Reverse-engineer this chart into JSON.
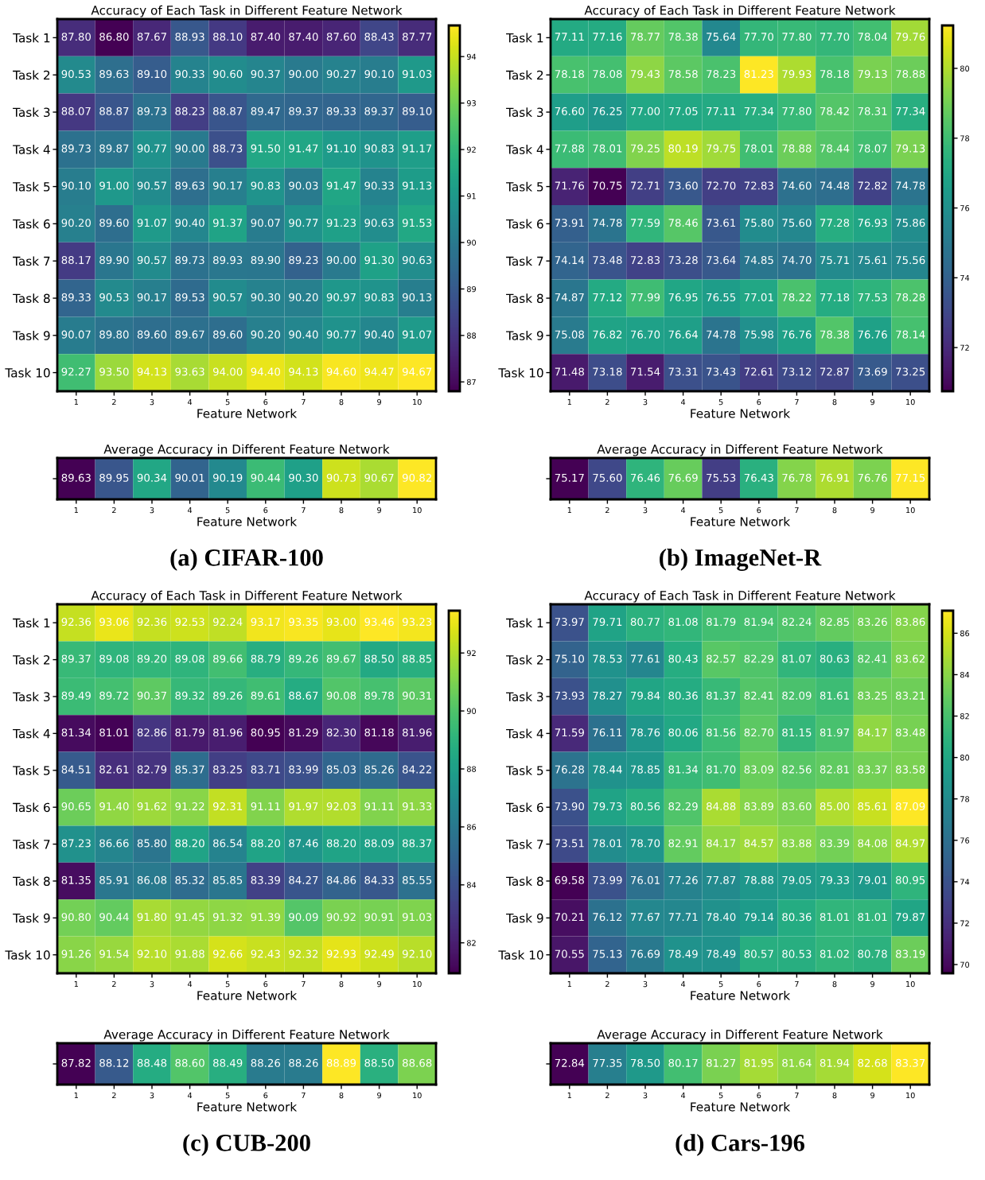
{
  "chart_data": [
    {
      "type": "heatmap",
      "title": "Accuracy of Each Task in Different Feature Network",
      "xlabel": "Feature Network",
      "categories": [
        "1",
        "2",
        "3",
        "4",
        "5",
        "6",
        "7",
        "8",
        "9",
        "10"
      ],
      "y_categories": [
        "Task 1",
        "Task 2",
        "Task 3",
        "Task 4",
        "Task 5",
        "Task 6",
        "Task 7",
        "Task 8",
        "Task 9",
        "Task 10"
      ],
      "data_labels": true,
      "clim": [
        86.8,
        94.67
      ],
      "cticks": [
        87,
        88,
        89,
        90,
        91,
        92,
        93,
        94
      ],
      "cells": [
        [
          87.8,
          86.8,
          87.67,
          88.93,
          88.1,
          87.4,
          87.4,
          87.6,
          88.43,
          87.77
        ],
        [
          90.53,
          89.63,
          89.1,
          90.33,
          90.6,
          90.37,
          90.0,
          90.27,
          90.1,
          91.03
        ],
        [
          88.07,
          88.87,
          89.73,
          88.23,
          88.87,
          89.47,
          89.37,
          89.33,
          89.37,
          89.1
        ],
        [
          89.73,
          89.87,
          90.77,
          90.0,
          88.73,
          91.5,
          91.47,
          91.1,
          90.83,
          91.17
        ],
        [
          90.1,
          91.0,
          90.57,
          89.63,
          90.17,
          90.83,
          90.03,
          91.47,
          90.33,
          91.13
        ],
        [
          90.2,
          89.6,
          91.07,
          90.4,
          91.37,
          90.07,
          90.77,
          91.23,
          90.63,
          91.53
        ],
        [
          88.17,
          89.9,
          90.57,
          89.73,
          89.93,
          89.9,
          89.23,
          90.0,
          91.3,
          90.63
        ],
        [
          89.33,
          90.53,
          90.17,
          89.53,
          90.57,
          90.3,
          90.2,
          90.97,
          90.83,
          90.13
        ],
        [
          90.07,
          89.8,
          89.6,
          89.67,
          89.6,
          90.2,
          90.4,
          90.77,
          90.4,
          91.07
        ],
        [
          92.27,
          93.5,
          94.13,
          93.63,
          94.0,
          94.4,
          94.13,
          94.6,
          94.47,
          94.67
        ]
      ],
      "cell_labels": [
        [
          "87.80",
          "86.80",
          "87.67",
          "88.93",
          "88.10",
          "87.40",
          "87.40",
          "87.60",
          "88.43",
          "87.77"
        ],
        [
          "90.53",
          "89.63",
          "89.10",
          "90.33",
          "90.60",
          "90.37",
          "90.00",
          "90.27",
          "90.10",
          "91.03"
        ],
        [
          "88.07",
          "88.87",
          "89.73",
          "88.23",
          "88.87",
          "89.47",
          "89.37",
          "89.33",
          "89.37",
          "89.10"
        ],
        [
          "89.73",
          "89.87",
          "90.77",
          "90.00",
          "88.73",
          "91.50",
          "91.47",
          "91.10",
          "90.83",
          "91.17"
        ],
        [
          "90.10",
          "91.00",
          "90.57",
          "89.63",
          "90.17",
          "90.83",
          "90.03",
          "91.47",
          "90.33",
          "91.13"
        ],
        [
          "90.20",
          "89.60",
          "91.07",
          "90.40",
          "91.37",
          "90.07",
          "90.77",
          "91.23",
          "90.63",
          "91.53"
        ],
        [
          "88.17",
          "89.90",
          "90.57",
          "89.73",
          "89.93",
          "89.90",
          "89.23",
          "90.00",
          "91.30",
          "90.63"
        ],
        [
          "89.33",
          "90.53",
          "90.17",
          "89.53",
          "90.57",
          "90.30",
          "90.20",
          "90.97",
          "90.83",
          "90.13"
        ],
        [
          "90.07",
          "89.80",
          "89.60",
          "89.67",
          "89.60",
          "90.20",
          "90.40",
          "90.77",
          "90.40",
          "91.07"
        ],
        [
          "92.27",
          "93.50",
          "94.13",
          "93.63",
          "94.00",
          "94.40",
          "94.13",
          "94.60",
          "94.47",
          "94.67"
        ]
      ]
    },
    {
      "type": "heatmap",
      "title": "Average Accuracy in Different Feature Network",
      "xlabel": "Feature Network",
      "categories": [
        "1",
        "2",
        "3",
        "4",
        "5",
        "6",
        "7",
        "8",
        "9",
        "10"
      ],
      "y_categories": [
        null
      ],
      "data_labels": true,
      "annotations": [
        "(a) CIFAR-100"
      ],
      "cells": [
        [
          89.63,
          89.95,
          90.34,
          90.01,
          90.19,
          90.44,
          90.3,
          90.73,
          90.67,
          90.82
        ]
      ],
      "cell_labels": [
        [
          "89.63",
          "89.95",
          "90.34",
          "90.01",
          "90.19",
          "90.44",
          "90.30",
          "90.73",
          "90.67",
          "90.82"
        ]
      ]
    },
    {
      "type": "heatmap",
      "title": "Accuracy of Each Task in Different Feature Network",
      "xlabel": "Feature Network",
      "categories": [
        "1",
        "2",
        "3",
        "4",
        "5",
        "6",
        "7",
        "8",
        "9",
        "10"
      ],
      "y_categories": [
        "Task 1",
        "Task 2",
        "Task 3",
        "Task 4",
        "Task 5",
        "Task 6",
        "Task 7",
        "Task 8",
        "Task 9",
        "Task 10"
      ],
      "data_labels": true,
      "clim": [
        70.75,
        81.23
      ],
      "cticks": [
        72,
        74,
        76,
        78,
        80
      ],
      "cells": [
        [
          77.11,
          77.16,
          78.77,
          78.38,
          75.64,
          77.7,
          77.8,
          77.7,
          78.04,
          79.76
        ],
        [
          78.18,
          78.08,
          79.43,
          78.58,
          78.23,
          81.23,
          79.93,
          78.18,
          79.13,
          78.88
        ],
        [
          76.6,
          76.25,
          77.0,
          77.05,
          77.11,
          77.34,
          77.8,
          78.42,
          78.31,
          77.34
        ],
        [
          77.88,
          78.01,
          79.25,
          80.19,
          79.75,
          78.01,
          78.88,
          78.44,
          78.07,
          79.13
        ],
        [
          71.76,
          70.75,
          72.71,
          73.6,
          72.7,
          72.83,
          74.6,
          74.48,
          72.82,
          74.78
        ],
        [
          73.91,
          74.78,
          77.59,
          78.46,
          73.61,
          75.8,
          75.6,
          77.28,
          76.93,
          75.86
        ],
        [
          74.14,
          73.48,
          72.83,
          73.28,
          73.64,
          74.85,
          74.7,
          75.71,
          75.61,
          75.56
        ],
        [
          74.87,
          77.12,
          77.99,
          76.95,
          76.55,
          77.01,
          78.22,
          77.18,
          77.53,
          78.28
        ],
        [
          75.08,
          76.82,
          76.7,
          76.64,
          74.78,
          75.98,
          76.76,
          78.38,
          76.76,
          78.14
        ],
        [
          71.48,
          73.18,
          71.54,
          73.31,
          73.43,
          72.61,
          73.12,
          72.87,
          73.69,
          73.25
        ]
      ],
      "cell_labels": [
        [
          "77.11",
          "77.16",
          "78.77",
          "78.38",
          "75.64",
          "77.70",
          "77.80",
          "77.70",
          "78.04",
          "79.76"
        ],
        [
          "78.18",
          "78.08",
          "79.43",
          "78.58",
          "78.23",
          "81.23",
          "79.93",
          "78.18",
          "79.13",
          "78.88"
        ],
        [
          "76.60",
          "76.25",
          "77.00",
          "77.05",
          "77.11",
          "77.34",
          "77.80",
          "78.42",
          "78.31",
          "77.34"
        ],
        [
          "77.88",
          "78.01",
          "79.25",
          "80.19",
          "79.75",
          "78.01",
          "78.88",
          "78.44",
          "78.07",
          "79.13"
        ],
        [
          "71.76",
          "70.75",
          "72.71",
          "73.60",
          "72.70",
          "72.83",
          "74.60",
          "74.48",
          "72.82",
          "74.78"
        ],
        [
          "73.91",
          "74.78",
          "77.59",
          "78.46",
          "73.61",
          "75.80",
          "75.60",
          "77.28",
          "76.93",
          "75.86"
        ],
        [
          "74.14",
          "73.48",
          "72.83",
          "73.28",
          "73.64",
          "74.85",
          "74.70",
          "75.71",
          "75.61",
          "75.56"
        ],
        [
          "74.87",
          "77.12",
          "77.99",
          "76.95",
          "76.55",
          "77.01",
          "78.22",
          "77.18",
          "77.53",
          "78.28"
        ],
        [
          "75.08",
          "76.82",
          "76.70",
          "76.64",
          "74.78",
          "75.98",
          "76.76",
          "78.38",
          "76.76",
          "78.14"
        ],
        [
          "71.48",
          "73.18",
          "71.54",
          "73.31",
          "73.43",
          "72.61",
          "73.12",
          "72.87",
          "73.69",
          "73.25"
        ]
      ]
    },
    {
      "type": "heatmap",
      "title": "Average Accuracy in Different Feature Network",
      "xlabel": "Feature Network",
      "categories": [
        "1",
        "2",
        "3",
        "4",
        "5",
        "6",
        "7",
        "8",
        "9",
        "10"
      ],
      "y_categories": [
        null
      ],
      "data_labels": true,
      "annotations": [
        "(b) ImageNet-R"
      ],
      "cells": [
        [
          75.17,
          75.6,
          76.46,
          76.69,
          75.53,
          76.43,
          76.78,
          76.91,
          76.76,
          77.15
        ]
      ],
      "cell_labels": [
        [
          "75.17",
          "75.60",
          "76.46",
          "76.69",
          "75.53",
          "76.43",
          "76.78",
          "76.91",
          "76.76",
          "77.15"
        ]
      ]
    },
    {
      "type": "heatmap",
      "title": "Accuracy of Each Task in Different Feature Network",
      "xlabel": "Feature Network",
      "categories": [
        "1",
        "2",
        "3",
        "4",
        "5",
        "6",
        "7",
        "8",
        "9",
        "10"
      ],
      "y_categories": [
        "Task 1",
        "Task 2",
        "Task 3",
        "Task 4",
        "Task 5",
        "Task 6",
        "Task 7",
        "Task 8",
        "Task 9",
        "Task 10"
      ],
      "data_labels": true,
      "clim": [
        80.95,
        93.46
      ],
      "cticks": [
        82,
        84,
        86,
        88,
        90,
        92
      ],
      "cells": [
        [
          92.36,
          93.06,
          92.36,
          92.53,
          92.24,
          93.17,
          93.35,
          93.0,
          93.46,
          93.23
        ],
        [
          89.37,
          89.08,
          89.2,
          89.08,
          89.66,
          88.79,
          89.26,
          89.67,
          88.5,
          88.85
        ],
        [
          89.49,
          89.72,
          90.37,
          89.32,
          89.26,
          89.61,
          88.67,
          90.08,
          89.78,
          90.31
        ],
        [
          81.34,
          81.01,
          82.86,
          81.79,
          81.96,
          80.95,
          81.29,
          82.3,
          81.18,
          81.96
        ],
        [
          84.51,
          82.61,
          82.79,
          85.37,
          83.25,
          83.71,
          83.99,
          85.03,
          85.26,
          84.22
        ],
        [
          90.65,
          91.4,
          91.62,
          91.22,
          92.31,
          91.11,
          91.97,
          92.03,
          91.11,
          91.33
        ],
        [
          87.23,
          86.66,
          85.8,
          88.2,
          86.54,
          88.2,
          87.46,
          88.2,
          88.09,
          88.37
        ],
        [
          81.35,
          85.91,
          86.08,
          85.32,
          85.85,
          83.39,
          84.27,
          84.86,
          84.33,
          85.55
        ],
        [
          90.8,
          90.44,
          91.8,
          91.45,
          91.32,
          91.39,
          90.09,
          90.92,
          90.91,
          91.03
        ],
        [
          91.26,
          91.54,
          92.1,
          91.88,
          92.66,
          92.43,
          92.32,
          92.93,
          92.49,
          92.1
        ]
      ],
      "cell_labels": [
        [
          "92.36",
          "93.06",
          "92.36",
          "92.53",
          "92.24",
          "93.17",
          "93.35",
          "93.00",
          "93.46",
          "93.23"
        ],
        [
          "89.37",
          "89.08",
          "89.20",
          "89.08",
          "89.66",
          "88.79",
          "89.26",
          "89.67",
          "88.50",
          "88.85"
        ],
        [
          "89.49",
          "89.72",
          "90.37",
          "89.32",
          "89.26",
          "89.61",
          "88.67",
          "90.08",
          "89.78",
          "90.31"
        ],
        [
          "81.34",
          "81.01",
          "82.86",
          "81.79",
          "81.96",
          "80.95",
          "81.29",
          "82.30",
          "81.18",
          "81.96"
        ],
        [
          "84.51",
          "82.61",
          "82.79",
          "85.37",
          "83.25",
          "83.71",
          "83.99",
          "85.03",
          "85.26",
          "84.22"
        ],
        [
          "90.65",
          "91.40",
          "91.62",
          "91.22",
          "92.31",
          "91.11",
          "91.97",
          "92.03",
          "91.11",
          "91.33"
        ],
        [
          "87.23",
          "86.66",
          "85.80",
          "88.20",
          "86.54",
          "88.20",
          "87.46",
          "88.20",
          "88.09",
          "88.37"
        ],
        [
          "81.35",
          "85.91",
          "86.08",
          "85.32",
          "85.85",
          "83.39",
          "84.27",
          "84.86",
          "84.33",
          "85.55"
        ],
        [
          "90.80",
          "90.44",
          "91.80",
          "91.45",
          "91.32",
          "91.39",
          "90.09",
          "90.92",
          "90.91",
          "91.03"
        ],
        [
          "91.26",
          "91.54",
          "92.10",
          "91.88",
          "92.66",
          "92.43",
          "92.32",
          "92.93",
          "92.49",
          "92.10"
        ]
      ]
    },
    {
      "type": "heatmap",
      "title": "Average Accuracy in Different Feature Network",
      "xlabel": "Feature Network",
      "categories": [
        "1",
        "2",
        "3",
        "4",
        "5",
        "6",
        "7",
        "8",
        "9",
        "10"
      ],
      "y_categories": [
        null
      ],
      "data_labels": true,
      "annotations": [
        "(c) CUB-200"
      ],
      "cells": [
        [
          87.82,
          88.12,
          88.48,
          88.6,
          88.49,
          88.26,
          88.26,
          88.89,
          88.5,
          88.68
        ]
      ],
      "cell_labels": [
        [
          "87.82",
          "88.12",
          "88.48",
          "88.60",
          "88.49",
          "88.26",
          "88.26",
          "88.89",
          "88.50",
          "88.68"
        ]
      ]
    },
    {
      "type": "heatmap",
      "title": "Accuracy of Each Task in Different Feature Network",
      "xlabel": "Feature Network",
      "categories": [
        "1",
        "2",
        "3",
        "4",
        "5",
        "6",
        "7",
        "8",
        "9",
        "10"
      ],
      "y_categories": [
        "Task 1",
        "Task 2",
        "Task 3",
        "Task 4",
        "Task 5",
        "Task 6",
        "Task 7",
        "Task 8",
        "Task 9",
        "Task 10"
      ],
      "data_labels": true,
      "clim": [
        69.58,
        87.09
      ],
      "cticks": [
        70,
        72,
        74,
        76,
        78,
        80,
        82,
        84,
        86
      ],
      "cells": [
        [
          73.97,
          79.71,
          80.77,
          81.08,
          81.79,
          81.94,
          82.24,
          82.85,
          83.26,
          83.86
        ],
        [
          75.1,
          78.53,
          77.61,
          80.43,
          82.57,
          82.29,
          81.07,
          80.63,
          82.41,
          83.62
        ],
        [
          73.93,
          78.27,
          79.84,
          80.36,
          81.37,
          82.41,
          82.09,
          81.61,
          83.25,
          83.21
        ],
        [
          71.59,
          76.11,
          78.76,
          80.06,
          81.56,
          82.7,
          81.15,
          81.97,
          84.17,
          83.48
        ],
        [
          76.28,
          78.44,
          78.85,
          81.34,
          81.7,
          83.09,
          82.56,
          82.81,
          83.37,
          83.58
        ],
        [
          73.9,
          79.73,
          80.56,
          82.29,
          84.88,
          83.89,
          83.6,
          85.0,
          85.61,
          87.09
        ],
        [
          73.51,
          78.01,
          78.7,
          82.91,
          84.17,
          84.57,
          83.88,
          83.39,
          84.08,
          84.97
        ],
        [
          69.58,
          73.99,
          76.01,
          77.26,
          77.87,
          78.88,
          79.05,
          79.33,
          79.01,
          80.95
        ],
        [
          70.21,
          76.12,
          77.67,
          77.71,
          78.4,
          79.14,
          80.36,
          81.01,
          81.01,
          79.87
        ],
        [
          70.55,
          75.13,
          76.69,
          78.49,
          78.49,
          80.57,
          80.53,
          81.02,
          80.78,
          83.19
        ]
      ],
      "cell_labels": [
        [
          "73.97",
          "79.71",
          "80.77",
          "81.08",
          "81.79",
          "81.94",
          "82.24",
          "82.85",
          "83.26",
          "83.86"
        ],
        [
          "75.10",
          "78.53",
          "77.61",
          "80.43",
          "82.57",
          "82.29",
          "81.07",
          "80.63",
          "82.41",
          "83.62"
        ],
        [
          "73.93",
          "78.27",
          "79.84",
          "80.36",
          "81.37",
          "82.41",
          "82.09",
          "81.61",
          "83.25",
          "83.21"
        ],
        [
          "71.59",
          "76.11",
          "78.76",
          "80.06",
          "81.56",
          "82.70",
          "81.15",
          "81.97",
          "84.17",
          "83.48"
        ],
        [
          "76.28",
          "78.44",
          "78.85",
          "81.34",
          "81.70",
          "83.09",
          "82.56",
          "82.81",
          "83.37",
          "83.58"
        ],
        [
          "73.90",
          "79.73",
          "80.56",
          "82.29",
          "84.88",
          "83.89",
          "83.60",
          "85.00",
          "85.61",
          "87.09"
        ],
        [
          "73.51",
          "78.01",
          "78.70",
          "82.91",
          "84.17",
          "84.57",
          "83.88",
          "83.39",
          "84.08",
          "84.97"
        ],
        [
          "69.58",
          "73.99",
          "76.01",
          "77.26",
          "77.87",
          "78.88",
          "79.05",
          "79.33",
          "79.01",
          "80.95"
        ],
        [
          "70.21",
          "76.12",
          "77.67",
          "77.71",
          "78.40",
          "79.14",
          "80.36",
          "81.01",
          "81.01",
          "79.87"
        ],
        [
          "70.55",
          "75.13",
          "76.69",
          "78.49",
          "78.49",
          "80.57",
          "80.53",
          "81.02",
          "80.78",
          "83.19"
        ]
      ]
    },
    {
      "type": "heatmap",
      "title": "Average Accuracy in Different Feature Network",
      "xlabel": "Feature Network",
      "categories": [
        "1",
        "2",
        "3",
        "4",
        "5",
        "6",
        "7",
        "8",
        "9",
        "10"
      ],
      "y_categories": [
        null
      ],
      "data_labels": true,
      "annotations": [
        "(d) Cars-196"
      ],
      "cells": [
        [
          72.84,
          77.35,
          78.5,
          80.17,
          81.27,
          81.95,
          81.64,
          81.94,
          82.68,
          83.37
        ]
      ],
      "cell_labels": [
        [
          "72.84",
          "77.35",
          "78.50",
          "80.17",
          "81.27",
          "81.95",
          "81.64",
          "81.94",
          "82.68",
          "83.37"
        ]
      ]
    }
  ]
}
